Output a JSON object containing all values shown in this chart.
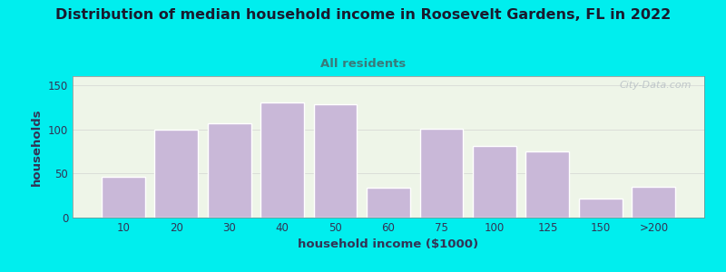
{
  "title": "Distribution of median household income in Roosevelt Gardens, FL in 2022",
  "subtitle": "All residents",
  "xlabel": "household income ($1000)",
  "ylabel": "households",
  "background_color": "#00EEEE",
  "bar_color": "#c9b8d8",
  "bar_edge_color": "#ffffff",
  "title_color": "#1a1a2e",
  "subtitle_color": "#3a7a7a",
  "axis_label_color": "#333355",
  "tick_color": "#333355",
  "categories": [
    "10",
    "20",
    "30",
    "40",
    "50",
    "60",
    "75",
    "100",
    "125",
    "150",
    ">200"
  ],
  "values": [
    46,
    100,
    107,
    130,
    128,
    34,
    101,
    81,
    75,
    22,
    35
  ],
  "ylim": [
    0,
    160
  ],
  "yticks": [
    0,
    50,
    100,
    150
  ],
  "watermark": "City-Data.com",
  "figsize": [
    8.0,
    3.0
  ],
  "dpi": 100
}
